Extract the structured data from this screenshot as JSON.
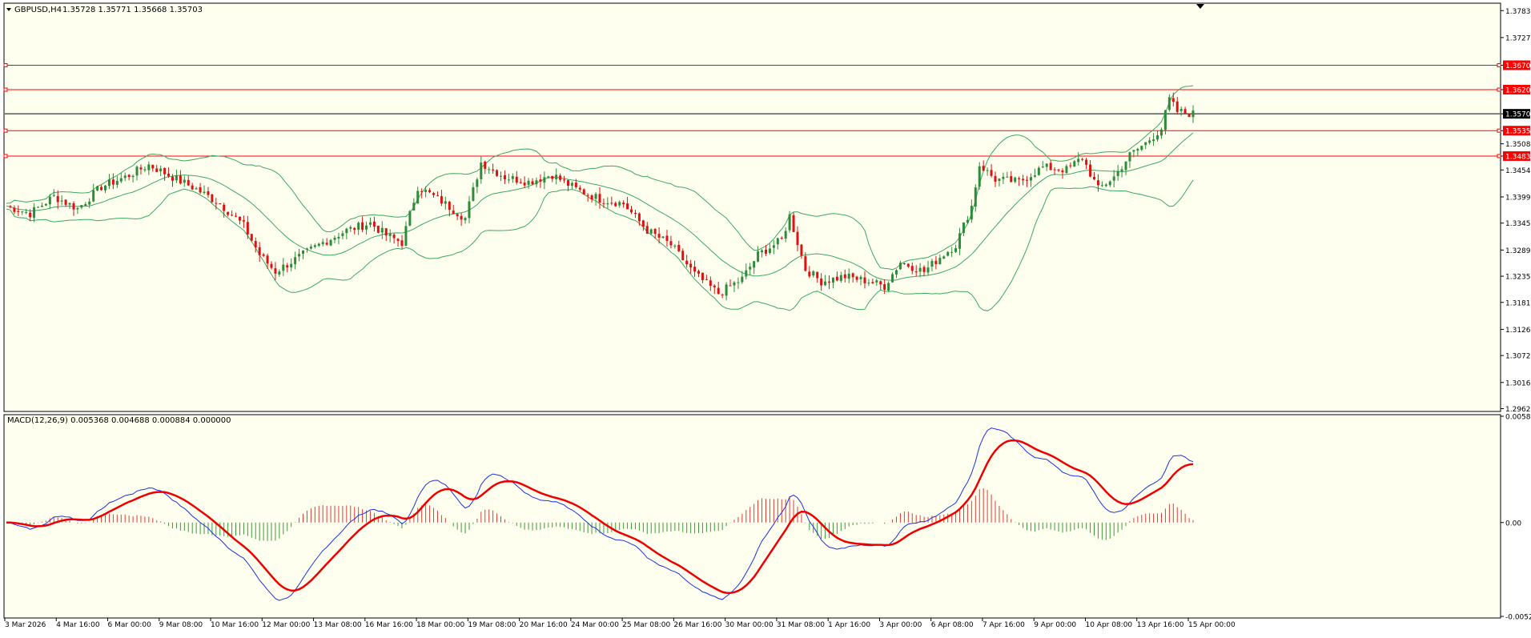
{
  "symbol_header": {
    "symbol": "GBPUSD,H4",
    "ohlc": "1.35728 1.35771 1.35668 1.35703"
  },
  "colors": {
    "background": "#fffff0",
    "bull_candle": "#2e8b3a",
    "bear_candle": "#dd1111",
    "bollinger": "#3aa860",
    "hline": "#ff0000",
    "price_line": "#000000",
    "macd_line": "#1f2fe0",
    "signal_line": "#ee0000",
    "hist_pos": "#e03a3a",
    "hist_neg": "#3a9a3a"
  },
  "price_axis": {
    "ticks": [
      "1.37830",
      "1.37275",
      "1.36704",
      "1.36201",
      "1.35703",
      "1.35356",
      "1.35085",
      "1.34832",
      "1.34545",
      "1.33990",
      "1.33450",
      "1.32895",
      "1.32355",
      "1.31815",
      "1.31260",
      "1.30720",
      "1.30165",
      "1.29625"
    ],
    "highlighted": [
      "1.36704",
      "1.36201",
      "1.35703",
      "1.35356",
      "1.34832"
    ],
    "current": "1.35703"
  },
  "horizontal_levels": [
    1.36704,
    1.36201,
    1.35356,
    1.34832
  ],
  "macd": {
    "title": "MACD(12,26,9) 0.005368 0.004688 0.000884 0.000000",
    "ticks": [
      "0.005888",
      "0.00",
      "-0.00520"
    ]
  },
  "time_axis": [
    "3 Mar 2026",
    "4 Mar 16:00",
    "6 Mar 00:00",
    "9 Mar 08:00",
    "10 Mar 16:00",
    "12 Mar 00:00",
    "13 Mar 08:00",
    "16 Mar 16:00",
    "18 Mar 00:00",
    "19 Mar 08:00",
    "20 Mar 16:00",
    "24 Mar 00:00",
    "25 Mar 08:00",
    "26 Mar 16:00",
    "30 Mar 00:00",
    "31 Mar 08:00",
    "1 Apr 16:00",
    "3 Apr 00:00",
    "6 Apr 08:00",
    "7 Apr 16:00",
    "9 Apr 00:00",
    "10 Apr 08:00",
    "13 Apr 16:00",
    "15 Apr 00:00"
  ],
  "chart_data": {
    "type": "candlestick",
    "symbol": "GBPUSD",
    "timeframe": "H4",
    "ylim": [
      1.296,
      1.3795
    ],
    "close_path": [
      [
        0,
        1.338
      ],
      [
        6,
        1.3365
      ],
      [
        12,
        1.34
      ],
      [
        18,
        1.3375
      ],
      [
        24,
        1.342
      ],
      [
        30,
        1.344
      ],
      [
        36,
        1.3465
      ],
      [
        42,
        1.344
      ],
      [
        48,
        1.3415
      ],
      [
        54,
        1.3385
      ],
      [
        60,
        1.334
      ],
      [
        64,
        1.328
      ],
      [
        68,
        1.3245
      ],
      [
        74,
        1.3275
      ],
      [
        80,
        1.3305
      ],
      [
        86,
        1.333
      ],
      [
        92,
        1.3345
      ],
      [
        96,
        1.332
      ],
      [
        100,
        1.3305
      ],
      [
        104,
        1.342
      ],
      [
        110,
        1.339
      ],
      [
        116,
        1.3355
      ],
      [
        120,
        1.347
      ],
      [
        126,
        1.344
      ],
      [
        132,
        1.343
      ],
      [
        138,
        1.3445
      ],
      [
        144,
        1.3415
      ],
      [
        150,
        1.3395
      ],
      [
        156,
        1.3385
      ],
      [
        162,
        1.333
      ],
      [
        168,
        1.33
      ],
      [
        174,
        1.324
      ],
      [
        180,
        1.32
      ],
      [
        186,
        1.323
      ],
      [
        190,
        1.328
      ],
      [
        196,
        1.331
      ],
      [
        198,
        1.336
      ],
      [
        202,
        1.325
      ],
      [
        206,
        1.3225
      ],
      [
        212,
        1.3235
      ],
      [
        218,
        1.3225
      ],
      [
        222,
        1.3215
      ],
      [
        226,
        1.3265
      ],
      [
        232,
        1.3245
      ],
      [
        236,
        1.3275
      ],
      [
        240,
        1.33
      ],
      [
        244,
        1.338
      ],
      [
        246,
        1.3465
      ],
      [
        250,
        1.3435
      ],
      [
        256,
        1.343
      ],
      [
        262,
        1.346
      ],
      [
        268,
        1.3455
      ],
      [
        272,
        1.348
      ],
      [
        276,
        1.3415
      ],
      [
        280,
        1.344
      ],
      [
        284,
        1.3485
      ],
      [
        288,
        1.351
      ],
      [
        292,
        1.354
      ],
      [
        294,
        1.36
      ],
      [
        296,
        1.3575
      ],
      [
        300,
        1.357
      ]
    ]
  }
}
